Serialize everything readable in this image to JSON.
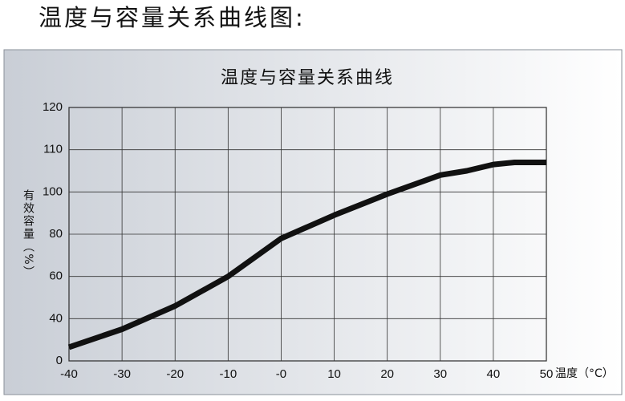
{
  "header": {
    "title": "温度与容量关系曲线图:"
  },
  "chart_data": {
    "type": "line",
    "title": "温度与容量关系曲线",
    "y_label": "有效容量（%）",
    "x_label": "温度（°C）",
    "x": [
      -40,
      -30,
      -20,
      -10,
      0,
      10,
      20,
      30,
      35,
      40,
      44,
      50
    ],
    "series": [
      {
        "color": "#111111",
        "values": [
          13,
          30,
          46,
          60,
          78,
          89,
          99,
          104,
          105,
          106.5,
          107,
          107
        ]
      }
    ],
    "xlim": [
      -40,
      50
    ],
    "xticks": [
      -40,
      -30,
      -20,
      -10,
      {
        "value": 0,
        "label": "-0"
      },
      10,
      20,
      30,
      40,
      50
    ],
    "ylim": [
      0,
      120
    ],
    "yticks": [
      0,
      40,
      60,
      80,
      100,
      110,
      120
    ],
    "grid": true
  }
}
